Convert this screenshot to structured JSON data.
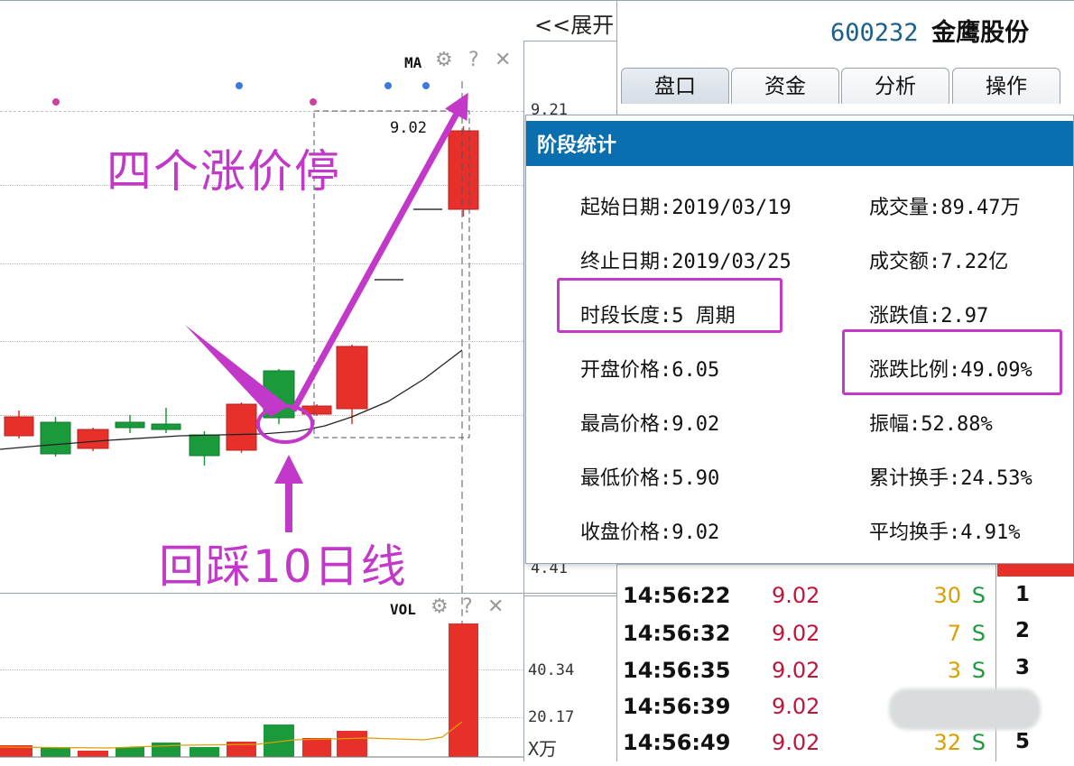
{
  "header": {
    "expand_label": "<<展开",
    "stock_code": "600232",
    "stock_name": "金鹰股份"
  },
  "tabs": [
    {
      "label": "盘口"
    },
    {
      "label": "资金"
    },
    {
      "label": "分析"
    },
    {
      "label": "操作"
    }
  ],
  "price_chart": {
    "indicator": "MA",
    "axis_labels": {
      "top": "9.21",
      "bottom": "4.41"
    },
    "high_label": "9.02"
  },
  "volume_chart": {
    "indicator": "VOL",
    "axis_labels": [
      "40.34",
      "20.17"
    ],
    "unit": "X万"
  },
  "dialog": {
    "title": "阶段统计",
    "left": [
      "起始日期:2019/03/19",
      "终止日期:2019/03/25",
      "时段长度:5 周期",
      "开盘价格:6.05",
      "最高价格:9.02",
      "最低价格:5.90",
      "收盘价格:9.02"
    ],
    "right": [
      "成交量:89.47万",
      "成交额:7.22亿",
      "涨跌值:2.97",
      "涨跌比例:49.09%",
      "振幅:52.88%",
      "累计换手:24.53%",
      "平均换手:4.91%"
    ]
  },
  "trades": [
    {
      "time": "14:56:22",
      "price": "9.02",
      "volume": "30",
      "side": "S"
    },
    {
      "time": "14:56:32",
      "price": "9.02",
      "volume": "7",
      "side": "S"
    },
    {
      "time": "14:56:35",
      "price": "9.02",
      "volume": "3",
      "side": "S"
    },
    {
      "time": "14:56:39",
      "price": "9.02",
      "volume": "",
      "side": ""
    },
    {
      "time": "14:56:49",
      "price": "9.02",
      "volume": "32",
      "side": "S"
    }
  ],
  "side_numbers": [
    "1",
    "2",
    "3",
    "5"
  ],
  "annotations": {
    "top": "四个涨价停",
    "bottom": "回踩10日线"
  },
  "colors": {
    "up": "#e8302a",
    "down": "#1a9a3a",
    "accent": "#0a6fae",
    "annotation": "#c238c8"
  }
}
